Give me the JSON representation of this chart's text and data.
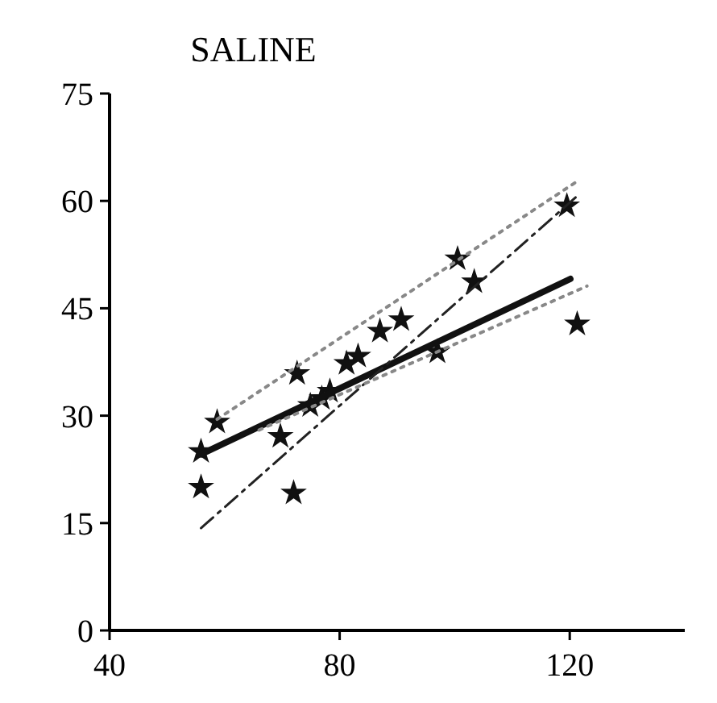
{
  "chart_data": {
    "type": "scatter",
    "title": "SALINE",
    "xlim": [
      40,
      140
    ],
    "xticks": [
      40,
      80,
      120
    ],
    "ylim": [
      0,
      75
    ],
    "yticks": [
      0,
      15,
      30,
      45,
      60,
      75
    ],
    "series": [
      {
        "marker": "star",
        "color": "#111111",
        "x": [
          55.9,
          55.9,
          58.7,
          72,
          69.7,
          72.6,
          74.9,
          76.9,
          78.3,
          81.2,
          83.2,
          87,
          90.7,
          97,
          100.5,
          103.4,
          119.5,
          121.3
        ],
        "values": [
          20,
          25,
          29.1,
          19.2,
          27.1,
          35.9,
          31.4,
          32.4,
          33.4,
          37.3,
          38.3,
          41.8,
          43.4,
          38.9,
          51.9,
          48.7,
          59.3,
          42.8
        ]
      },
      {
        "type": "line",
        "line_style": "solid",
        "color": "#111111",
        "x": [
          55.9,
          120.1
        ],
        "values": [
          24.6,
          49.1
        ]
      },
      {
        "type": "line",
        "line_style": "dashed",
        "color": "#222222",
        "x": [
          55.9,
          121.6
        ],
        "values": [
          14.3,
          60.9
        ]
      },
      {
        "type": "line",
        "line_style": "dotted",
        "color": "#888888",
        "x": [
          58.7,
          121.6
        ],
        "values": [
          29.5,
          62.9
        ]
      },
      {
        "type": "line",
        "line_style": "dotted",
        "color": "#888888",
        "x": [
          66,
          123
        ],
        "values": [
          28,
          48.1
        ]
      }
    ]
  }
}
